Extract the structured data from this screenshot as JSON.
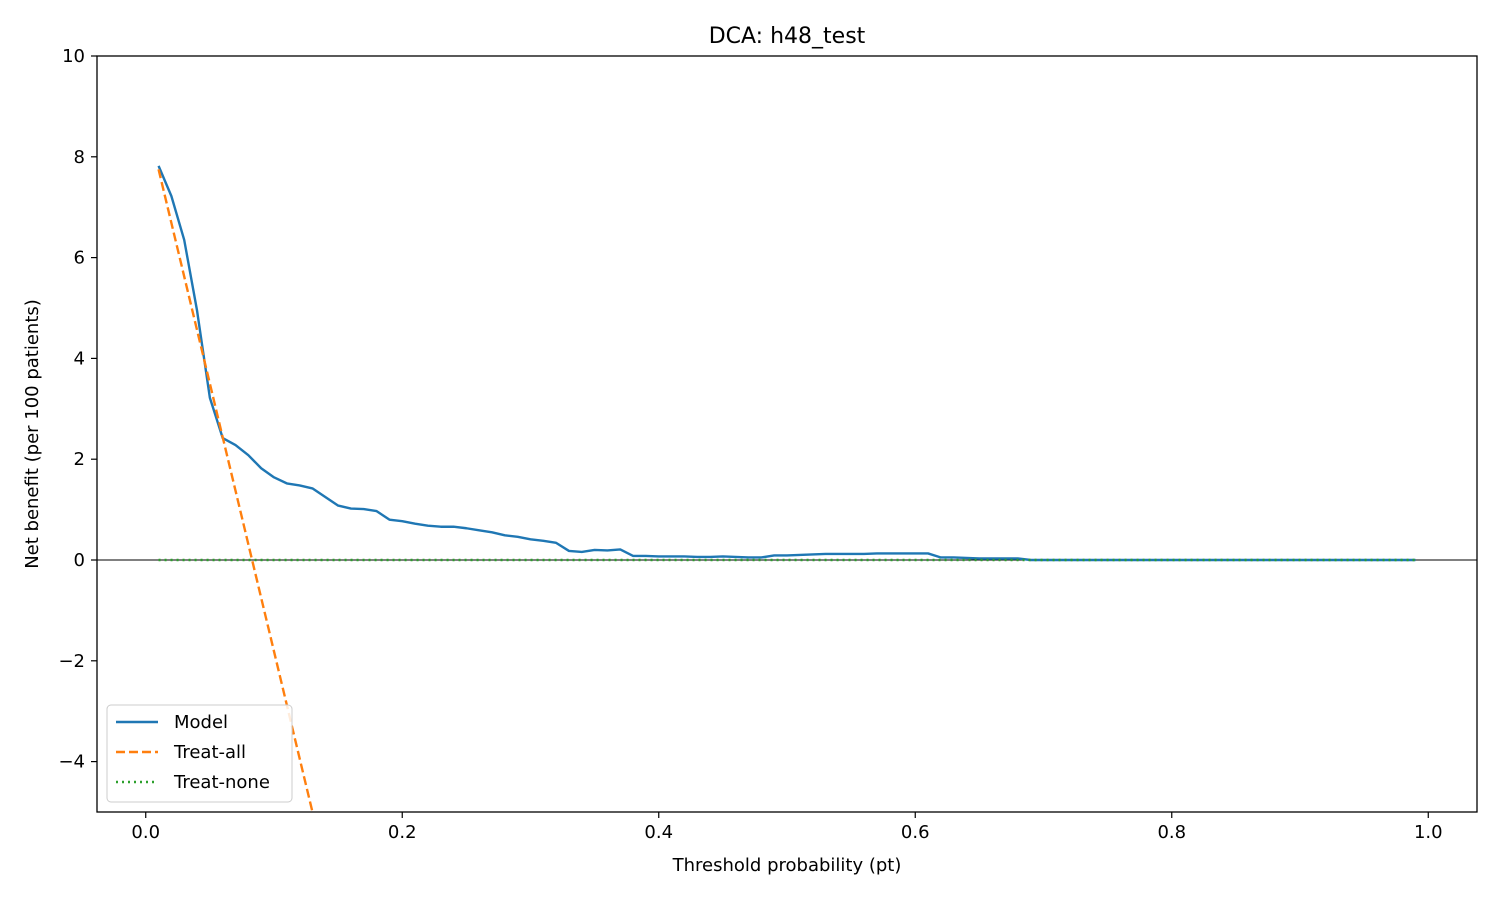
{
  "chart_data": {
    "type": "line",
    "title": "DCA: h48_test",
    "xlabel": "Threshold probability (pt)",
    "ylabel": "Net benefit (per 100 patients)",
    "xlim": [
      -0.038,
      1.038
    ],
    "ylim": [
      -5,
      10
    ],
    "xticks": [
      0.0,
      0.2,
      0.4,
      0.6,
      0.8,
      1.0
    ],
    "xtick_labels": [
      "0.0",
      "0.2",
      "0.4",
      "0.6",
      "0.8",
      "1.0"
    ],
    "yticks": [
      -4,
      -2,
      0,
      2,
      4,
      6,
      8,
      10
    ],
    "ytick_labels": [
      "−4",
      "−2",
      "0",
      "2",
      "4",
      "6",
      "8",
      "10"
    ],
    "grid": false,
    "zero_line": true,
    "legend_position": "lower-left",
    "series": [
      {
        "name": "Model",
        "style": "solid",
        "color": "#1f77b4",
        "x": [
          0.01,
          0.02,
          0.03,
          0.04,
          0.05,
          0.06,
          0.07,
          0.08,
          0.09,
          0.1,
          0.11,
          0.12,
          0.13,
          0.14,
          0.15,
          0.16,
          0.17,
          0.18,
          0.19,
          0.2,
          0.21,
          0.22,
          0.23,
          0.24,
          0.25,
          0.26,
          0.27,
          0.28,
          0.29,
          0.3,
          0.31,
          0.32,
          0.33,
          0.34,
          0.35,
          0.36,
          0.37,
          0.38,
          0.39,
          0.4,
          0.41,
          0.42,
          0.43,
          0.44,
          0.45,
          0.46,
          0.47,
          0.48,
          0.49,
          0.5,
          0.51,
          0.52,
          0.53,
          0.54,
          0.55,
          0.56,
          0.57,
          0.58,
          0.59,
          0.6,
          0.61,
          0.62,
          0.63,
          0.64,
          0.65,
          0.66,
          0.67,
          0.68,
          0.69,
          0.7,
          0.75,
          0.8,
          0.85,
          0.9,
          0.95,
          0.99
        ],
        "y": [
          7.82,
          7.22,
          6.35,
          4.95,
          3.22,
          2.42,
          2.28,
          2.08,
          1.82,
          1.64,
          1.52,
          1.48,
          1.42,
          1.25,
          1.08,
          1.02,
          1.01,
          0.97,
          0.8,
          0.77,
          0.72,
          0.68,
          0.66,
          0.66,
          0.63,
          0.59,
          0.55,
          0.49,
          0.46,
          0.41,
          0.38,
          0.34,
          0.18,
          0.16,
          0.2,
          0.19,
          0.21,
          0.08,
          0.08,
          0.07,
          0.07,
          0.07,
          0.06,
          0.06,
          0.07,
          0.06,
          0.05,
          0.05,
          0.09,
          0.09,
          0.1,
          0.11,
          0.12,
          0.12,
          0.12,
          0.12,
          0.13,
          0.13,
          0.13,
          0.13,
          0.13,
          0.05,
          0.05,
          0.04,
          0.03,
          0.03,
          0.03,
          0.03,
          0.0,
          0.0,
          0.0,
          0.0,
          0.0,
          0.0,
          0.0,
          0.0
        ]
      },
      {
        "name": "Treat-all",
        "style": "dashed",
        "color": "#ff7f0e",
        "x": [
          0.01,
          0.13
        ],
        "y": [
          7.75,
          -5.0
        ]
      },
      {
        "name": "Treat-none",
        "style": "dotted",
        "color": "#2ca02c",
        "x": [
          0.01,
          0.99
        ],
        "y": [
          0,
          0
        ]
      }
    ]
  }
}
